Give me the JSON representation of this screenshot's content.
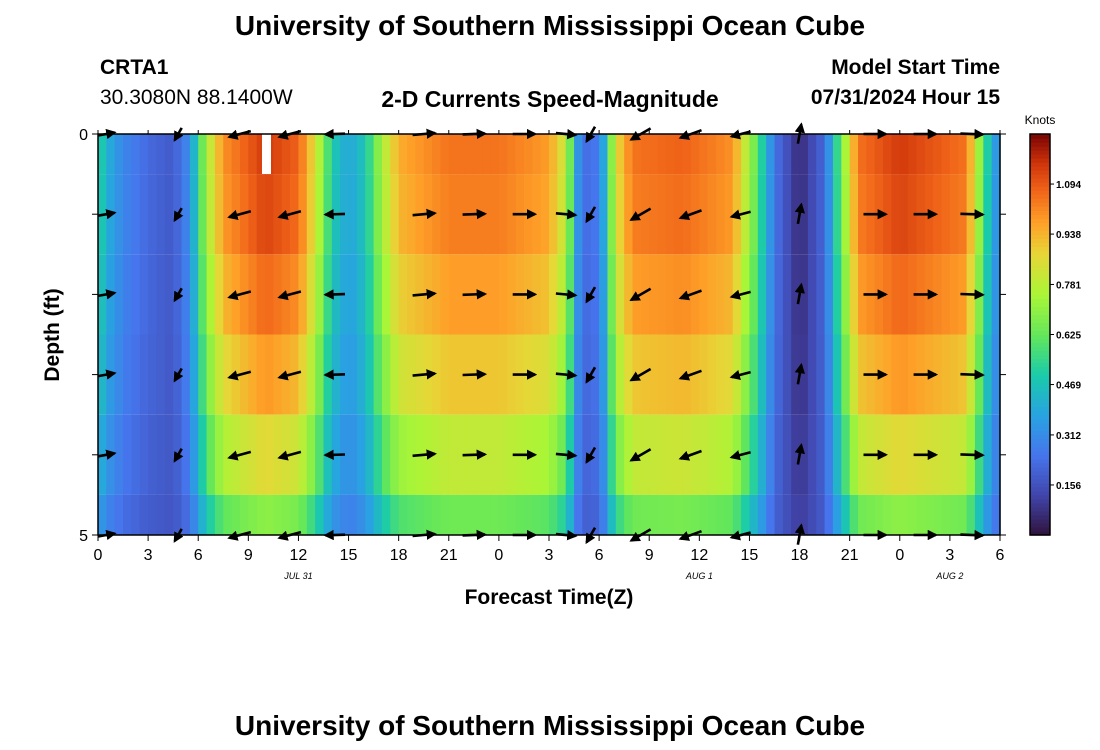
{
  "header": {
    "title": "University of Southern Mississippi Ocean Cube",
    "bottom_title": "University of Southern Mississippi Ocean Cube",
    "station_id": "CRTA1",
    "station_coords": "30.3080N  88.1400W",
    "plot_title": "2-D Currents Speed-Magnitude",
    "model_start_label": "Model Start Time",
    "model_start_value": "07/31/2024 Hour 15"
  },
  "chart_data": {
    "type": "heatmap",
    "title": "2-D Currents Speed-Magnitude",
    "xlabel": "Forecast Time(Z)",
    "ylabel": "Depth (ft)",
    "x_ticks": [
      "0",
      "3",
      "6",
      "9",
      "12",
      "15",
      "18",
      "21",
      "0",
      "3",
      "6",
      "9",
      "12",
      "15",
      "18",
      "21",
      "0",
      "3",
      "6"
    ],
    "x_range_hours": [
      0,
      54
    ],
    "y_ticks": [
      "0",
      "5"
    ],
    "y_range_ft": [
      0,
      5
    ],
    "day_labels": [
      {
        "text": "JUL 31",
        "hour": 12
      },
      {
        "text": "AUG 1",
        "hour": 36
      },
      {
        "text": "AUG 2",
        "hour": 51
      }
    ],
    "colorbar": {
      "unit": "Knots",
      "min": 0.0,
      "max": 1.25,
      "ticks": [
        "0.156",
        "0.312",
        "0.469",
        "0.625",
        "0.781",
        "0.938",
        "1.094"
      ],
      "tick_values": [
        0.156,
        0.312,
        0.469,
        0.625,
        0.781,
        0.938,
        1.094
      ]
    },
    "depth_levels_ft": [
      0,
      1,
      2,
      3,
      4,
      5
    ],
    "speed_profile": [
      {
        "hour": 0,
        "speed": 0.55
      },
      {
        "hour": 0.5,
        "speed": 0.42
      },
      {
        "hour": 1.5,
        "speed": 0.3
      },
      {
        "hour": 3,
        "speed": 0.22
      },
      {
        "hour": 4.5,
        "speed": 0.18
      },
      {
        "hour": 5.5,
        "speed": 0.32
      },
      {
        "hour": 6.5,
        "speed": 0.75
      },
      {
        "hour": 7.5,
        "speed": 1.0
      },
      {
        "hour": 10,
        "speed": 1.15
      },
      {
        "hour": 12,
        "speed": 1.08
      },
      {
        "hour": 13,
        "speed": 0.85
      },
      {
        "hour": 14,
        "speed": 0.5
      },
      {
        "hour": 15,
        "speed": 0.38
      },
      {
        "hour": 16,
        "speed": 0.48
      },
      {
        "hour": 17,
        "speed": 0.75
      },
      {
        "hour": 18,
        "speed": 0.95
      },
      {
        "hour": 21,
        "speed": 1.05
      },
      {
        "hour": 24,
        "speed": 1.05
      },
      {
        "hour": 27,
        "speed": 0.98
      },
      {
        "hour": 28,
        "speed": 0.8
      },
      {
        "hour": 28.8,
        "speed": 0.3
      },
      {
        "hour": 29.5,
        "speed": 0.2
      },
      {
        "hour": 30.2,
        "speed": 0.35
      },
      {
        "hour": 31,
        "speed": 0.85
      },
      {
        "hour": 32,
        "speed": 1.05
      },
      {
        "hour": 35,
        "speed": 1.08
      },
      {
        "hour": 38,
        "speed": 1.0
      },
      {
        "hour": 39.5,
        "speed": 0.6
      },
      {
        "hour": 40.5,
        "speed": 0.25
      },
      {
        "hour": 42,
        "speed": 0.06
      },
      {
        "hour": 43.5,
        "speed": 0.22
      },
      {
        "hour": 44.5,
        "speed": 0.65
      },
      {
        "hour": 45.5,
        "speed": 1.05
      },
      {
        "hour": 48,
        "speed": 1.15
      },
      {
        "hour": 52,
        "speed": 1.05
      },
      {
        "hour": 52.8,
        "speed": 0.7
      },
      {
        "hour": 53.5,
        "speed": 0.4
      },
      {
        "hour": 54,
        "speed": 0.3
      }
    ],
    "depth_attenuation": [
      1.0,
      0.98,
      0.92,
      0.84,
      0.72,
      0.55
    ],
    "arrows": [
      {
        "hour": 0.5,
        "dir": 80,
        "len": 0.6
      },
      {
        "hour": 4.8,
        "dir": 210,
        "len": 0.5
      },
      {
        "hour": 8.5,
        "dir": 255,
        "len": 0.8
      },
      {
        "hour": 11.5,
        "dir": 255,
        "len": 0.8
      },
      {
        "hour": 14.2,
        "dir": 268,
        "len": 0.7
      },
      {
        "hour": 19.5,
        "dir": 85,
        "len": 0.8
      },
      {
        "hour": 22.5,
        "dir": 88,
        "len": 0.8
      },
      {
        "hour": 25.5,
        "dir": 90,
        "len": 0.8
      },
      {
        "hour": 28.0,
        "dir": 95,
        "len": 0.7
      },
      {
        "hour": 29.5,
        "dir": 210,
        "len": 0.6
      },
      {
        "hour": 32.5,
        "dir": 240,
        "len": 0.8
      },
      {
        "hour": 35.5,
        "dir": 250,
        "len": 0.8
      },
      {
        "hour": 38.5,
        "dir": 255,
        "len": 0.7
      },
      {
        "hour": 42.0,
        "dir": 10,
        "len": 0.7
      },
      {
        "hour": 46.5,
        "dir": 90,
        "len": 0.8
      },
      {
        "hour": 49.5,
        "dir": 90,
        "len": 0.8
      },
      {
        "hour": 52.3,
        "dir": 92,
        "len": 0.8
      }
    ]
  }
}
